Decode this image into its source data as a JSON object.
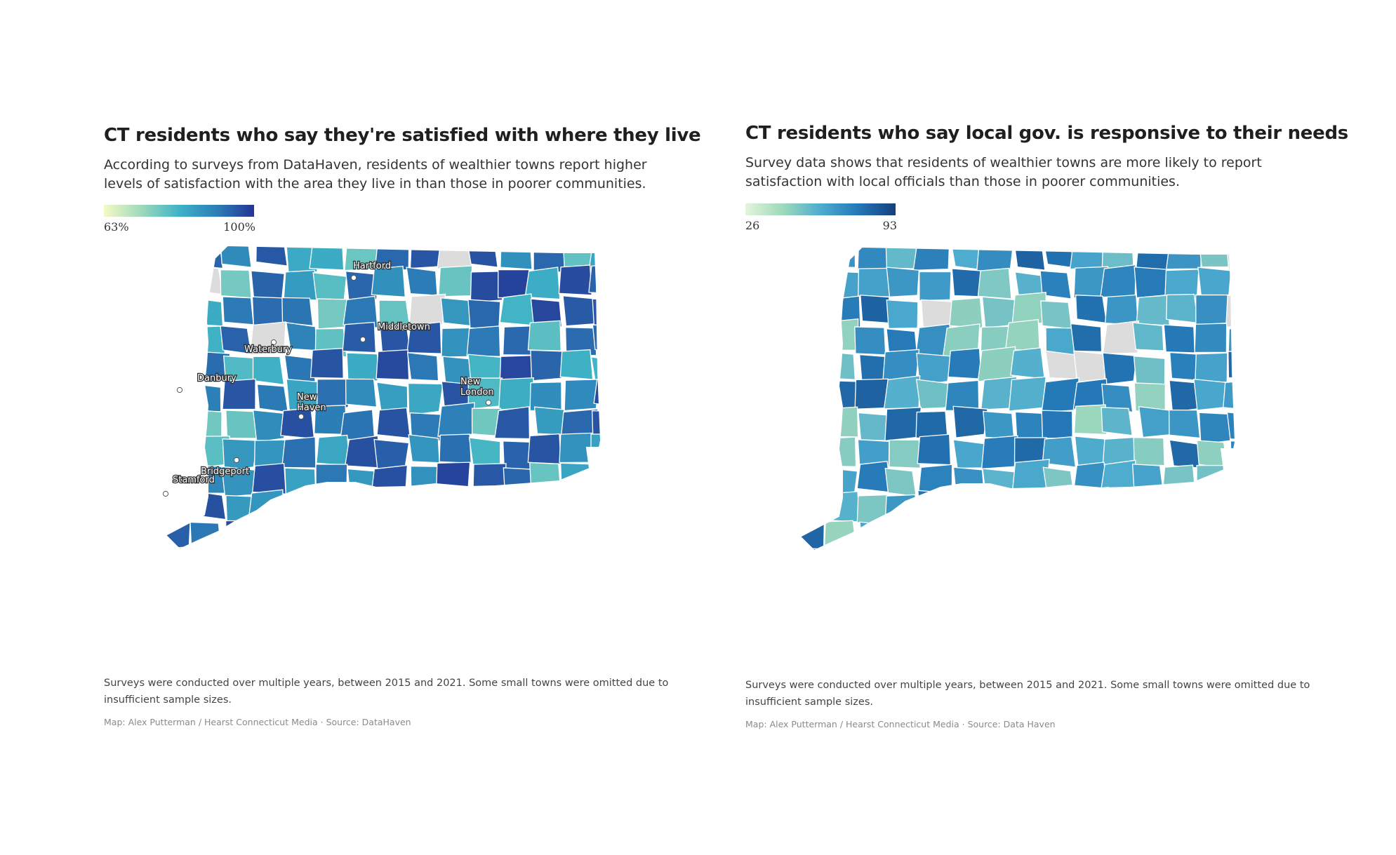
{
  "maps": [
    {
      "title": "CT residents who say they're satisfied with where they live",
      "subtitle": "According to surveys from DataHaven, residents of wealthier towns report higher levels of satisfaction with the area they live in than those in poorer communities.",
      "legend": {
        "min_label": "63%",
        "max_label": "100%",
        "min": 63,
        "max": 100,
        "colors": [
          "#f4f9c6",
          "#9ed9bb",
          "#3fb3c6",
          "#2c7fb8",
          "#253494"
        ]
      },
      "cities": [
        {
          "name": "Hartford",
          "lines": [
            "Hartford"
          ]
        },
        {
          "name": "Middletown",
          "lines": [
            "Middletown"
          ]
        },
        {
          "name": "Waterbury",
          "lines": [
            "Waterbury"
          ]
        },
        {
          "name": "Danbury",
          "lines": [
            "Danbury"
          ]
        },
        {
          "name": "New Haven",
          "lines": [
            "New",
            "Haven"
          ]
        },
        {
          "name": "New London",
          "lines": [
            "New",
            "London"
          ]
        },
        {
          "name": "Bridgeport",
          "lines": [
            "Bridgeport"
          ]
        },
        {
          "name": "Stamford",
          "lines": [
            "Stamford"
          ]
        }
      ],
      "note": "Surveys were conducted over multiple years, between 2015 and 2021. Some small towns were omitted due to insufficient sample sizes.",
      "credit": "Map: Alex Putterman / Hearst Connecticut Media · Source: DataHaven"
    },
    {
      "title": "CT residents who say local gov. is responsive to their needs",
      "subtitle": "Survey data shows that residents of wealthier towns are more likely to report satisfaction with local officials than those in poorer communities.",
      "legend": {
        "min_label": "26",
        "max_label": "93",
        "min": 26,
        "max": 93,
        "colors": [
          "#e4f4dc",
          "#9ed9bb",
          "#4eaccf",
          "#2478b7",
          "#173f7d"
        ]
      },
      "cities": [],
      "note": "Surveys were conducted over multiple years, between 2015 and 2021. Some small towns were omitted due to insufficient sample sizes.",
      "credit": "Map: Alex Putterman / Hearst Connecticut Media · Source: Data Haven"
    }
  ]
}
